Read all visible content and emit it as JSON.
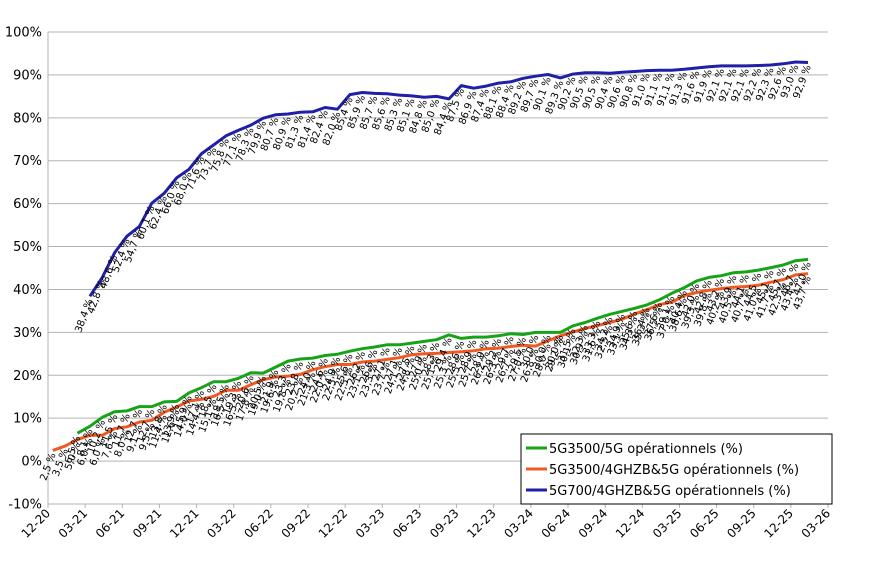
{
  "chart_data": {
    "type": "line",
    "y_tick_labels": [
      "-10%",
      "0%",
      "10%",
      "20%",
      "30%",
      "40%",
      "50%",
      "60%",
      "70%",
      "80%",
      "90%",
      "100%"
    ],
    "ylim": [
      -10,
      100
    ],
    "grid": true,
    "legend_position": "bottom-right",
    "x_tick_labels": [
      "12-20",
      "03-21",
      "06-21",
      "09-21",
      "12-21",
      "03-22",
      "06-22",
      "09-22",
      "12-22",
      "03-23",
      "06-23",
      "09-23",
      "12-23",
      "03-24",
      "06-24",
      "09-24",
      "12-24",
      "03-25",
      "06-25",
      "09-25",
      "12-25",
      "03-26"
    ],
    "series": [
      {
        "name": "5G3500/5G opérationnels (%)",
        "color": "#17a317",
        "values": [
          6.5,
          8.1,
          10.2,
          11.5,
          11.7,
          12.7,
          12.7,
          13.8,
          13.9,
          15.9,
          17.1,
          18.5,
          18.5,
          19.3,
          20.6,
          20.5,
          21.9,
          23.3,
          23.8,
          24.0,
          24.6,
          24.9,
          25.6,
          26.2,
          26.6,
          27.1,
          27.1,
          27.5,
          27.9,
          28.3,
          29.4,
          28.6,
          28.9,
          28.9,
          29.2,
          29.7,
          29.5,
          30.0,
          30.0,
          30.0,
          31.5,
          32.3,
          33.3,
          34.2,
          34.9,
          35.6,
          36.4,
          37.6,
          39.1,
          40.4,
          42.0,
          42.8,
          43.2,
          43.9,
          44.1,
          44.5,
          45.1,
          45.7,
          46.7,
          47.0
        ],
        "labels": [
          "6,5 %",
          "8,1 %",
          "10,2 %",
          "11,5 %",
          "11,7 %",
          "12,7 %",
          "12,7 %",
          "13,8 %",
          "13,9 %",
          "15,9 %",
          "17,1 %",
          "18,5 %",
          "18,5 %",
          "19,3 %",
          "20,6 %",
          "20,5 %",
          "21,9 %",
          "23,3 %",
          "23,8 %",
          "24,0 %",
          "24,6 %",
          "24,9 %",
          "25,6 %",
          "26,2 %",
          "26,6 %",
          "27,1 %",
          "27,1 %",
          "27,5 %",
          "27,9 %",
          "28,3 %",
          "29,4 %",
          "28,6 %",
          "28,9 %",
          "28,9 %",
          "29,2 %",
          "29,7 %",
          "29,5 %",
          "30,0 %",
          "30,0 %",
          "30,0 %",
          "31,5 %",
          "32,3 %",
          "33,3 %",
          "34,2 %",
          "34,9 %",
          "35,6 %",
          "36,4 %",
          "37,6 %",
          "39,1 %",
          "40,4 %",
          "42,0 %",
          "42,8 %",
          "43,2 %",
          "43,9 %",
          "44,1 %",
          "44,5 %",
          "45,1 %",
          "45,7 %",
          "46,7 %",
          "47,0 %"
        ]
      },
      {
        "name": "5G3500/4GHZB&5G opérationnels (%)",
        "color": "#f05a22",
        "values": [
          2.5,
          3.5,
          5.0,
          6.0,
          6.0,
          7.6,
          8.0,
          9.1,
          9.5,
          11.4,
          12.6,
          14.0,
          14.4,
          15.1,
          16.5,
          16.5,
          17.8,
          19.0,
          19.6,
          19.8,
          20.2,
          21.3,
          22.0,
          22.5,
          22.5,
          23.1,
          23.3,
          23.7,
          24.1,
          24.8,
          25.0,
          25.1,
          25.3,
          25.5,
          25.7,
          26.2,
          26.3,
          26.7,
          27.0,
          26.8,
          28.0,
          29.2,
          30.1,
          30.9,
          31.6,
          32.3,
          33.1,
          34.3,
          35.3,
          36.5,
          37.0,
          38.6,
          39.3,
          39.8,
          40.2,
          40.5,
          40.7,
          41.0,
          41.7,
          42.3,
          43.4,
          43.7
        ],
        "labels": [
          "2,5 %",
          "3,5 %",
          "5,0 %",
          "6,0 %",
          "6,0 %",
          "7,6 %",
          "8,0 %",
          "9,1 %",
          "9,5 %",
          "11,4 %",
          "12,6 %",
          "14,0 %",
          "14,4 %",
          "15,1 %",
          "16,5 %",
          "16,5 %",
          "17,8 %",
          "19,0 %",
          "19,6 %",
          "19,8 %",
          "20,2 %",
          "21,3 %",
          "22,0 %",
          "22,5 %",
          "22,5 %",
          "23,1 %",
          "23,3 %",
          "23,7 %",
          "24,1 %",
          "24,8 %",
          "25,0 %",
          "25,1 %",
          "25,3 %",
          "25,5 %",
          "25,7 %",
          "26,2 %",
          "26,3 %",
          "26,7 %",
          "27,0 %",
          "26,8 %",
          "28,0 %",
          "29,2 %",
          "30,1 %",
          "30,9 %",
          "31,6 %",
          "32,3 %",
          "33,1 %",
          "34,3 %",
          "35,3 %",
          "36,5 %",
          "37,0 %",
          "38,6 %",
          "39,3 %",
          "39,8 %",
          "40,2 %",
          "40,5 %",
          "40,7 %",
          "41,0 %",
          "41,7 %",
          "42,3 %",
          "43,4 %",
          "43,7 %"
        ]
      },
      {
        "name": "5G700/4GHZB&5G opérationnels (%)",
        "color": "#1f1fa8",
        "values": [
          38.4,
          42.8,
          48.6,
          52.4,
          54.7,
          60.1,
          62.4,
          66.0,
          68.0,
          71.6,
          73.7,
          75.8,
          77.1,
          78.3,
          79.9,
          80.7,
          80.9,
          81.3,
          81.4,
          82.4,
          82.0,
          85.4,
          85.9,
          85.7,
          85.6,
          85.3,
          85.1,
          84.8,
          85.0,
          84.4,
          87.5,
          86.9,
          87.4,
          88.1,
          88.4,
          89.2,
          89.7,
          90.1,
          89.3,
          90.2,
          90.5,
          90.5,
          90.4,
          90.6,
          90.8,
          91.0,
          91.1,
          91.1,
          91.3,
          91.6,
          91.9,
          92.1,
          92.1,
          92.1,
          92.2,
          92.3,
          92.6,
          93.0,
          92.9
        ],
        "labels": [
          "38,4 %",
          "42,8 %",
          "48,6 %",
          "52,4 %",
          "54,7 %",
          "60,1 %",
          "62,4 %",
          "66,0 %",
          "68,0 %",
          "71,6 %",
          "73,7 %",
          "75,8 %",
          "77,1 %",
          "78,3 %",
          "79,9 %",
          "80,7 %",
          "80,9 %",
          "81,3 %",
          "81,4 %",
          "82,4 %",
          "82,0 %",
          "85,4 %",
          "85,9 %",
          "85,7 %",
          "85,6 %",
          "85,3 %",
          "85,1 %",
          "84,8 %",
          "85,0 %",
          "84,4 %",
          "87,5 %",
          "86,9 %",
          "87,4 %",
          "88,1 %",
          "88,4 %",
          "89,2 %",
          "89,7 %",
          "90,1 %",
          "89,3 %",
          "90,2 %",
          "90,5 %",
          "90,5 %",
          "90,4 %",
          "90,6 %",
          "90,8 %",
          "91,0 %",
          "91,1 %",
          "91,1 %",
          "91,3 %",
          "91,6 %",
          "91,9 %",
          "92,1 %",
          "92,1 %",
          "92,1 %",
          "92,2 %",
          "92,3 %",
          "92,6 %",
          "93,0 %",
          "92,9 %"
        ]
      }
    ]
  }
}
